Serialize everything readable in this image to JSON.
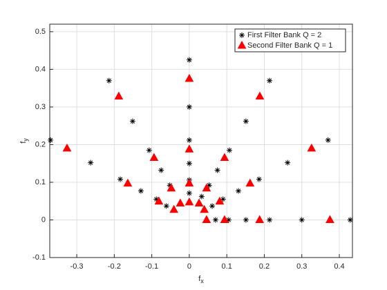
{
  "chart_data": {
    "type": "scatter",
    "xlabel": [
      "f",
      "x"
    ],
    "ylabel": [
      "f",
      "y"
    ],
    "xlim": [
      -0.372,
      0.435
    ],
    "ylim": [
      -0.1,
      0.52
    ],
    "xticks": [
      -0.3,
      -0.2,
      -0.1,
      0,
      0.1,
      0.2,
      0.3,
      0.4
    ],
    "yticks": [
      -0.1,
      0,
      0.1,
      0.2,
      0.3,
      0.4,
      0.5
    ],
    "grid": true,
    "legend": "upper right",
    "series": [
      {
        "name": "First Filter Bank Q = 2",
        "color": "#000000",
        "marker": "asterisk",
        "x": [
          0,
          0,
          0,
          0,
          0,
          0,
          -0.214,
          0.214,
          -0.37,
          0.37,
          -0.151,
          0.151,
          -0.263,
          0.262,
          -0.107,
          0.107,
          -0.184,
          0.186,
          -0.075,
          0.075,
          -0.129,
          0.131,
          -0.088,
          0.09,
          -0.052,
          0.053,
          -0.061,
          0.061,
          0.033,
          0.07,
          0.105,
          0.151,
          0.214,
          0.3,
          0.429
        ],
        "values": [
          0.425,
          0.3,
          0.212,
          0.15,
          0.106,
          0.071,
          0.37,
          0.37,
          0.212,
          0.212,
          0.262,
          0.262,
          0.152,
          0.152,
          0.185,
          0.185,
          0.108,
          0.108,
          0.132,
          0.132,
          0.077,
          0.077,
          0.055,
          0.055,
          0.092,
          0.092,
          0.037,
          0.037,
          0.062,
          0,
          0,
          0,
          0,
          0,
          0
        ]
      },
      {
        "name": "Second Filter Bank Q = 1",
        "color": "#ff0000",
        "marker": "triangle",
        "x": [
          0,
          0,
          0,
          0,
          -0.188,
          0.188,
          -0.326,
          0.326,
          -0.094,
          0.094,
          -0.164,
          0.162,
          -0.048,
          0.046,
          -0.081,
          0.081,
          -0.041,
          0.04,
          -0.024,
          0.026,
          0.046,
          0.094,
          0.1875,
          0.375
        ],
        "values": [
          0.375,
          0.1875,
          0.097,
          0.047,
          0.328,
          0.328,
          0.19,
          0.19,
          0.165,
          0.165,
          0.097,
          0.097,
          0.084,
          0.084,
          0.049,
          0.049,
          0.027,
          0.027,
          0.044,
          0.044,
          0,
          0,
          0,
          0
        ]
      }
    ]
  }
}
